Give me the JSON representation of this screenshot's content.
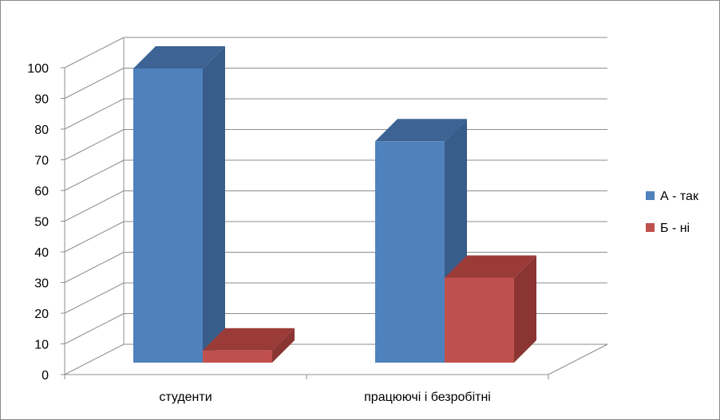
{
  "chart_data": {
    "type": "bar",
    "categories": [
      "студенти",
      "працюючі і безробітні"
    ],
    "series": [
      {
        "name": "А - так",
        "values": [
          97,
          73
        ],
        "color": "#4f81bd",
        "side_color": "#385d8a",
        "top_color": "#3c6394"
      },
      {
        "name": "Б - ні",
        "values": [
          4,
          28
        ],
        "color": "#c0504d",
        "side_color": "#8b3533",
        "top_color": "#9a3b38"
      }
    ],
    "ylim": [
      0,
      100
    ],
    "yticks": [
      0,
      10,
      20,
      30,
      40,
      50,
      60,
      70,
      80,
      90,
      100
    ],
    "legend": "right",
    "grid": true,
    "three_d": true
  }
}
